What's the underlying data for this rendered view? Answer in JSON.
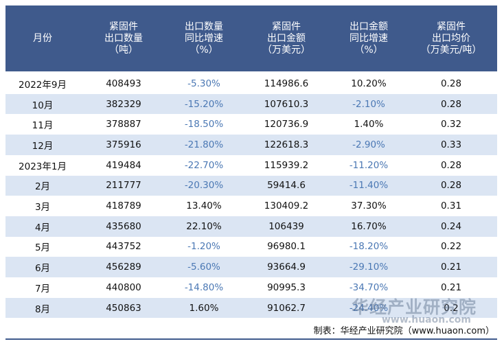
{
  "table": {
    "columns": [
      [
        "月份"
      ],
      [
        "紧固件",
        "出口数量",
        "（吨）"
      ],
      [
        "出口数量",
        "同比增速",
        "（%）"
      ],
      [
        "紧固件",
        "出口金额",
        "（万美元）"
      ],
      [
        "出口金额",
        "同比增速",
        "（%）"
      ],
      [
        "紧固件",
        "出口均价",
        "（万美元/吨）"
      ]
    ],
    "rows": [
      [
        "2022年9月",
        "408493",
        "-5.30%",
        "114986.6",
        "10.20%",
        "0.28"
      ],
      [
        "10月",
        "382329",
        "-15.20%",
        "107610.3",
        "-2.10%",
        "0.28"
      ],
      [
        "11月",
        "378887",
        "-18.50%",
        "120736.9",
        "1.40%",
        "0.32"
      ],
      [
        "12月",
        "375916",
        "-21.80%",
        "122618.3",
        "-2.90%",
        "0.33"
      ],
      [
        "2023年1月",
        "419484",
        "-22.70%",
        "115939.2",
        "-11.20%",
        "0.28"
      ],
      [
        "2月",
        "211777",
        "-20.30%",
        "59414.6",
        "-11.40%",
        "0.28"
      ],
      [
        "3月",
        "418789",
        "13.40%",
        "130409.2",
        "37.30%",
        "0.31"
      ],
      [
        "4月",
        "435680",
        "22.10%",
        "106439",
        "16.70%",
        "0.24"
      ],
      [
        "5月",
        "443752",
        "-1.20%",
        "96980.1",
        "-18.20%",
        "0.22"
      ],
      [
        "6月",
        "456289",
        "-5.60%",
        "93664.9",
        "-29.10%",
        "0.21"
      ],
      [
        "7月",
        "440800",
        "-14.80%",
        "90995.3",
        "-34.70%",
        "0.21"
      ],
      [
        "8月",
        "450863",
        "1.60%",
        "91062.7",
        "-24.40%",
        "0.2"
      ]
    ]
  },
  "footer": {
    "source": "制表：华经产业研究院（www.huaon.com）"
  },
  "watermark": {
    "title": "华经产业研究院",
    "url": "www.huaon.com"
  }
}
